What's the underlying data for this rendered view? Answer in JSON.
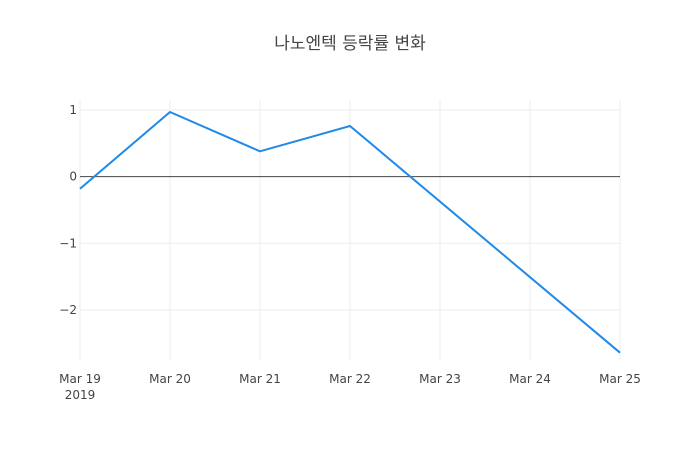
{
  "chart_data": {
    "type": "line",
    "title": "나노엔텍 등락률 변화",
    "xlabel": "",
    "ylabel": "",
    "x": [
      "2019-03-19",
      "2019-03-20",
      "2019-03-21",
      "2019-03-22",
      "2019-03-23",
      "2019-03-24",
      "2019-03-25"
    ],
    "x_tick_labels": [
      "Mar 19",
      "Mar 20",
      "Mar 21",
      "Mar 22",
      "Mar 23",
      "Mar 24",
      "Mar 25"
    ],
    "x_sub_label": "2019",
    "y_ticks": [
      1,
      0,
      -1,
      -2
    ],
    "y_tick_labels": [
      "1",
      "0",
      "−1",
      "−2"
    ],
    "ylim": [
      -2.75,
      1.15
    ],
    "grid": true,
    "series": [
      {
        "x": [
          "2019-03-19",
          "2019-03-20",
          "2019-03-21",
          "2019-03-22",
          "2019-03-25"
        ],
        "values": [
          -0.18,
          0.97,
          0.38,
          0.76,
          -2.64
        ],
        "color": "#1f8ae8"
      }
    ],
    "zero_line_color": "#444444",
    "grid_color": "#eeeeee",
    "text_color": "#444444"
  }
}
